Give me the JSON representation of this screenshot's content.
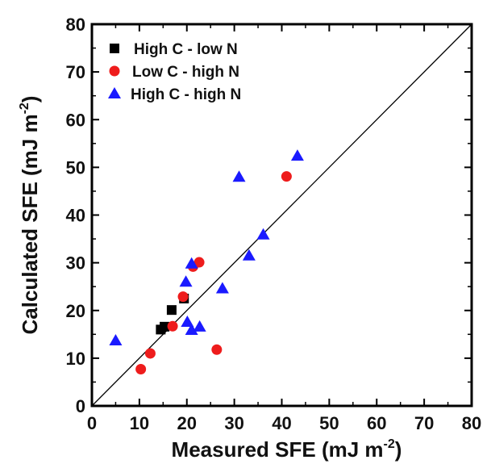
{
  "chart_data": {
    "type": "scatter",
    "xlabel": "Measured SFE (mJ m",
    "xlabel_sup": "-2",
    "xlabel_end": ")",
    "ylabel": "Calculated SFE (mJ m",
    "ylabel_sup": "-2",
    "ylabel_end": ")",
    "xlim": [
      0,
      80
    ],
    "ylim": [
      0,
      80
    ],
    "xticks": [
      0,
      10,
      20,
      30,
      40,
      50,
      60,
      70,
      80
    ],
    "yticks": [
      0,
      10,
      20,
      30,
      40,
      50,
      60,
      70,
      80
    ],
    "x_tick_labels": [
      "0",
      "10",
      "20",
      "30",
      "40",
      "50",
      "60",
      "70",
      "80"
    ],
    "y_tick_labels": [
      "0",
      "10",
      "20",
      "30",
      "40",
      "50",
      "60",
      "70",
      "80"
    ],
    "reference_line": {
      "x": [
        0,
        80
      ],
      "y": [
        0,
        80
      ]
    },
    "legend_position": "top-left",
    "series": [
      {
        "name": "High C - low N",
        "marker": "square",
        "color": "#000000",
        "points": [
          [
            14.5,
            16.0
          ],
          [
            15.3,
            16.6
          ],
          [
            16.8,
            20.1
          ],
          [
            19.4,
            22.5
          ]
        ]
      },
      {
        "name": "Low C - high N",
        "marker": "circle",
        "color": "#ee1c1c",
        "points": [
          [
            10.3,
            7.7
          ],
          [
            12.3,
            11.0
          ],
          [
            17.0,
            16.7
          ],
          [
            19.2,
            22.9
          ],
          [
            21.3,
            29.2
          ],
          [
            22.6,
            30.1
          ],
          [
            26.3,
            11.8
          ],
          [
            41.0,
            48.1
          ]
        ]
      },
      {
        "name": "High C - high N",
        "marker": "triangle",
        "color": "#1a1aff",
        "points": [
          [
            5.0,
            13.7
          ],
          [
            19.8,
            26.0
          ],
          [
            20.1,
            17.6
          ],
          [
            21.0,
            15.9
          ],
          [
            21.0,
            29.8
          ],
          [
            22.7,
            16.6
          ],
          [
            27.5,
            24.6
          ],
          [
            31.0,
            48.0
          ],
          [
            33.1,
            31.5
          ],
          [
            36.1,
            35.9
          ],
          [
            43.3,
            52.4
          ]
        ]
      }
    ]
  }
}
